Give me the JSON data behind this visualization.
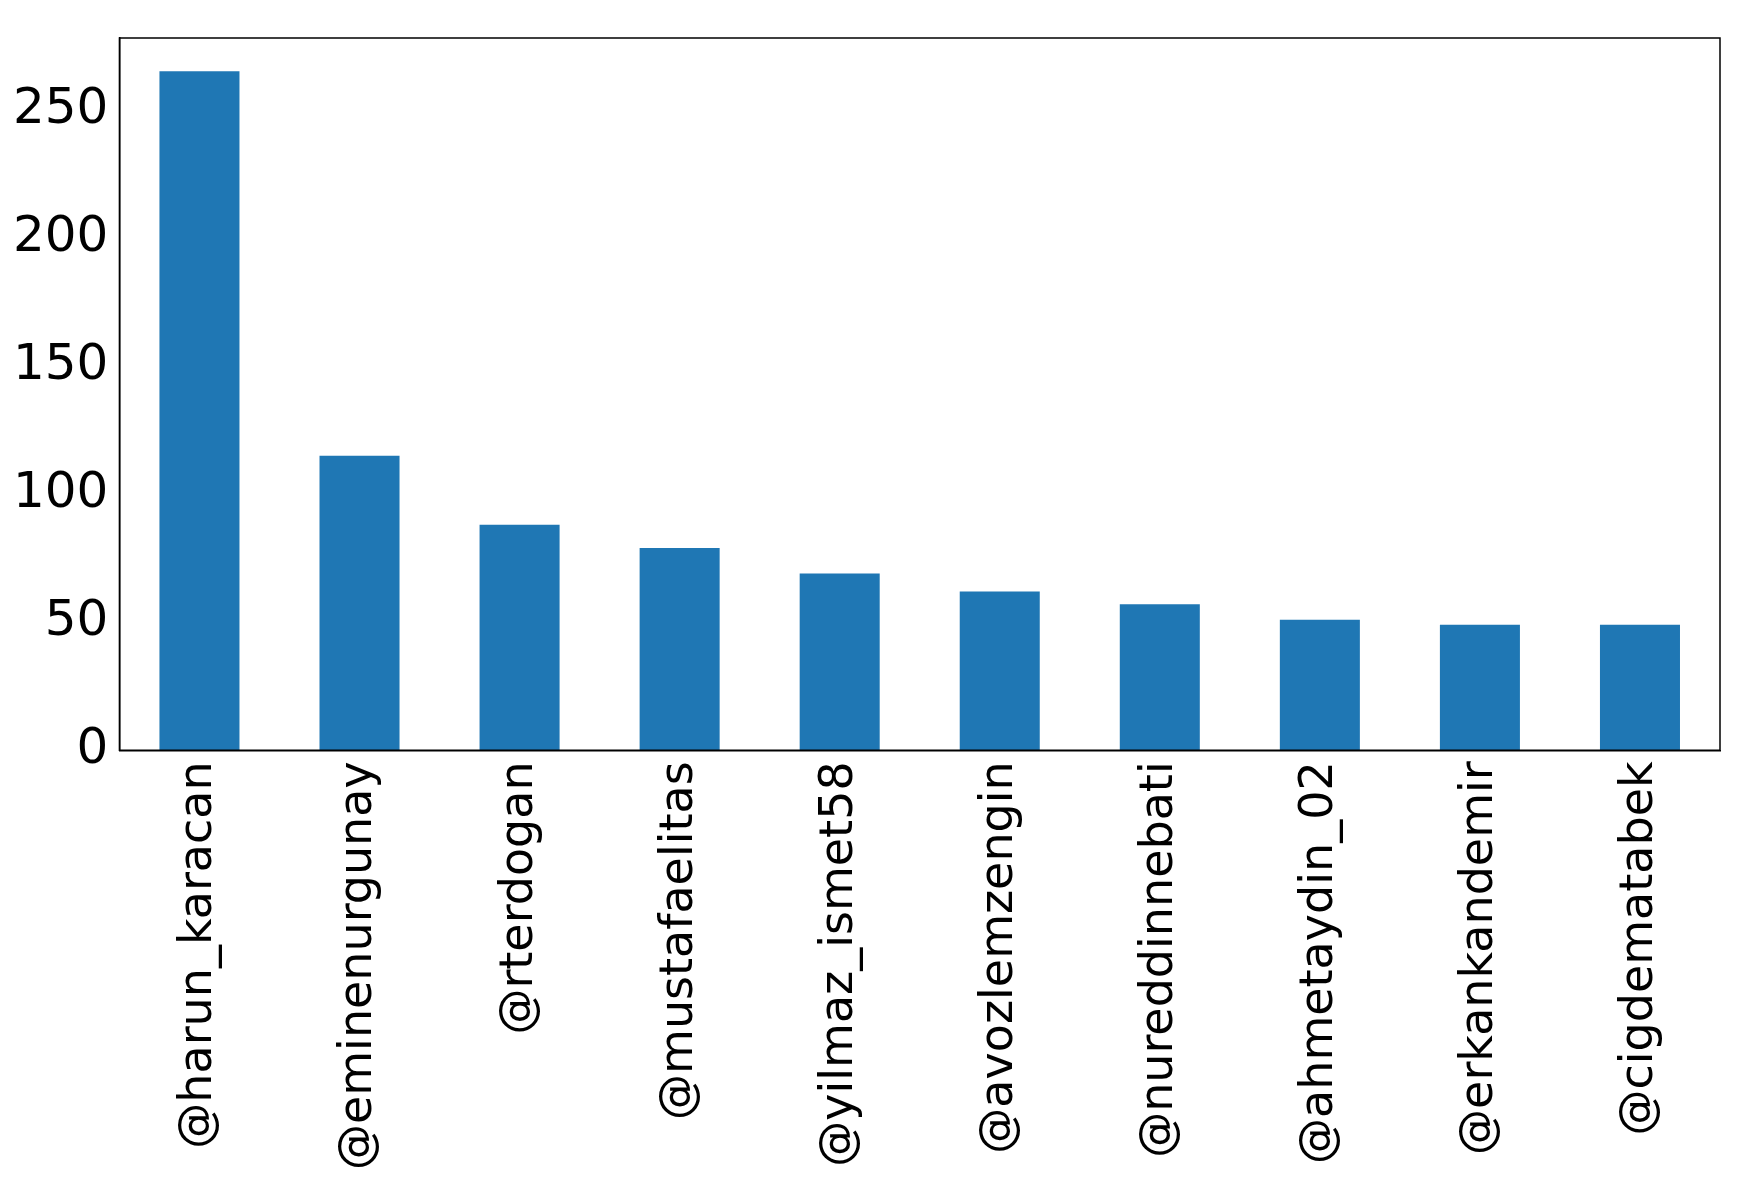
{
  "chart_data": {
    "type": "bar",
    "categories": [
      "@harun_karacan",
      "@eminenurgunay",
      "@rterdogan",
      "@mustafaelitas",
      "@yilmaz_ismet58",
      "@avozlemzengin",
      "@nureddinnebati",
      "@ahmetaydin_02",
      "@erkankandemir",
      "@cigdematabek"
    ],
    "values": [
      265,
      115,
      88,
      79,
      69,
      62,
      57,
      51,
      49,
      49
    ],
    "color": "#1f77b4",
    "ylim": [
      0,
      278
    ],
    "yticks": [
      0,
      50,
      100,
      150,
      200,
      250
    ],
    "grid": false,
    "legend": false
  }
}
